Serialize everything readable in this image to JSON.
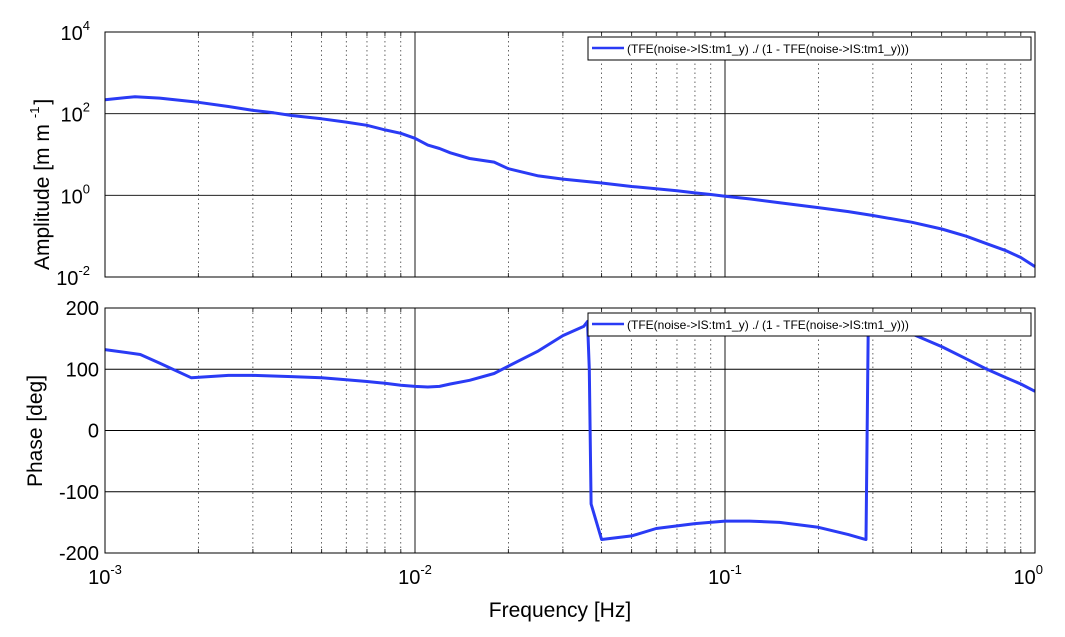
{
  "colors": {
    "series": "#2a3bf5",
    "axes": "#000000",
    "background": "#ffffff"
  },
  "chart_data": [
    {
      "type": "line",
      "panel": "amplitude",
      "ylabel": "Amplitude [m m",
      "ylabel_exponent": "-1",
      "ylabel_close": "]",
      "xscale": "log",
      "yscale": "log",
      "xlim": [
        0.001,
        1
      ],
      "ylim": [
        0.01,
        10000
      ],
      "xticks": [
        {
          "value": 0.001,
          "base": "10",
          "exp": "-3"
        },
        {
          "value": 0.01,
          "base": "10",
          "exp": "-2"
        },
        {
          "value": 0.1,
          "base": "10",
          "exp": "-1"
        },
        {
          "value": 1,
          "base": "10",
          "exp": "0"
        }
      ],
      "yticks": [
        {
          "value": 0.01,
          "base": "10",
          "exp": "-2"
        },
        {
          "value": 1,
          "base": "10",
          "exp": "0"
        },
        {
          "value": 100,
          "base": "10",
          "exp": "2"
        },
        {
          "value": 10000,
          "base": "10",
          "exp": "4"
        }
      ],
      "grid": true,
      "legend_position": "top-right",
      "series": [
        {
          "name": "(TFE(noise->IS:tm1_y) ./ (1 - TFE(noise->IS:tm1_y)))",
          "x": [
            0.001,
            0.00125,
            0.0015,
            0.002,
            0.0025,
            0.003,
            0.0035,
            0.004,
            0.005,
            0.006,
            0.007,
            0.008,
            0.009,
            0.01,
            0.011,
            0.012,
            0.013,
            0.015,
            0.018,
            0.02,
            0.025,
            0.03,
            0.04,
            0.05,
            0.06,
            0.07,
            0.08,
            0.09,
            0.1,
            0.12,
            0.15,
            0.2,
            0.25,
            0.3,
            0.4,
            0.5,
            0.6,
            0.7,
            0.8,
            0.9,
            1.0
          ],
          "y": [
            220,
            260,
            240,
            190,
            150,
            120,
            105,
            90,
            75,
            62,
            52,
            40,
            33,
            25,
            17,
            14,
            11,
            8,
            6.5,
            4.5,
            3.0,
            2.5,
            2.0,
            1.65,
            1.45,
            1.3,
            1.15,
            1.05,
            0.95,
            0.82,
            0.66,
            0.5,
            0.4,
            0.32,
            0.22,
            0.15,
            0.1,
            0.065,
            0.045,
            0.03,
            0.018
          ]
        }
      ]
    },
    {
      "type": "line",
      "panel": "phase",
      "ylabel": "Phase [deg]",
      "xlabel": "Frequency [Hz]",
      "xscale": "log",
      "yscale": "linear",
      "xlim": [
        0.001,
        1
      ],
      "ylim": [
        -200,
        200
      ],
      "xticks": [
        {
          "value": 0.001,
          "base": "10",
          "exp": "-3"
        },
        {
          "value": 0.01,
          "base": "10",
          "exp": "-2"
        },
        {
          "value": 0.1,
          "base": "10",
          "exp": "-1"
        },
        {
          "value": 1,
          "base": "10",
          "exp": "0"
        }
      ],
      "yticks": [
        {
          "value": -200,
          "label": "-200"
        },
        {
          "value": -100,
          "label": "-100"
        },
        {
          "value": 0,
          "label": "0"
        },
        {
          "value": 100,
          "label": "100"
        },
        {
          "value": 200,
          "label": "200"
        }
      ],
      "grid": true,
      "legend_position": "top-right",
      "series": [
        {
          "name": "(TFE(noise->IS:tm1_y) ./ (1 - TFE(noise->IS:tm1_y)))",
          "x": [
            0.001,
            0.0013,
            0.0015,
            0.0019,
            0.0025,
            0.003,
            0.004,
            0.005,
            0.006,
            0.007,
            0.008,
            0.009,
            0.01,
            0.011,
            0.012,
            0.013,
            0.015,
            0.018,
            0.02,
            0.025,
            0.03,
            0.035,
            0.036,
            0.0365,
            0.037,
            0.04,
            0.05,
            0.06,
            0.08,
            0.1,
            0.12,
            0.15,
            0.2,
            0.25,
            0.28,
            0.285,
            0.29,
            0.3,
            0.4,
            0.5,
            0.6,
            0.7,
            0.8,
            0.9,
            1.0
          ],
          "y": [
            132,
            124,
            110,
            86,
            90,
            90,
            88,
            86,
            83,
            80,
            77,
            74,
            72,
            71,
            72,
            76,
            82,
            93,
            105,
            130,
            155,
            170,
            178,
            100,
            -120,
            -178,
            -172,
            -160,
            -152,
            -148,
            -148,
            -150,
            -158,
            -170,
            -177,
            -178,
            178,
            175,
            158,
            137,
            117,
            100,
            87,
            76,
            64
          ]
        }
      ]
    }
  ]
}
